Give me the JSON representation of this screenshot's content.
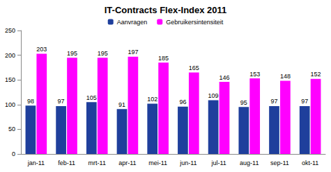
{
  "chart_data": {
    "type": "bar",
    "title": "IT-Contracts Flex-Index 2011",
    "categories": [
      "jan-11",
      "feb-11",
      "mrt-11",
      "apr-11",
      "mei-11",
      "jun-11",
      "jul-11",
      "aug-11",
      "sep-11",
      "okt-11"
    ],
    "series": [
      {
        "name": "Aanvragen",
        "color": "#1f3f9c",
        "values": [
          98,
          97,
          105,
          91,
          102,
          96,
          109,
          95,
          97,
          97
        ]
      },
      {
        "name": "Gebruikersintensiteit",
        "color": "#ff00ff",
        "values": [
          203,
          195,
          195,
          197,
          185,
          165,
          146,
          153,
          148,
          152
        ]
      }
    ],
    "ylim": [
      0,
      250
    ],
    "yticks": [
      0,
      50,
      100,
      150,
      200,
      250
    ],
    "grid": false,
    "legend": "top",
    "data_labels": true
  }
}
